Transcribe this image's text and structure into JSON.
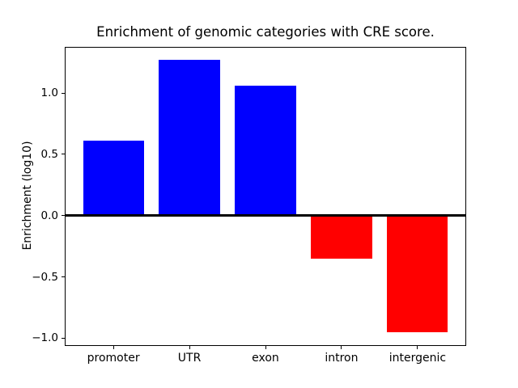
{
  "chart_data": {
    "type": "bar",
    "title": "Enrichment of genomic categories with CRE score.",
    "xlabel": "",
    "ylabel": "Enrichment (log10)",
    "categories": [
      "promoter",
      "UTR",
      "exon",
      "intron",
      "intergenic"
    ],
    "values": [
      0.61,
      1.27,
      1.06,
      -0.35,
      -0.95
    ],
    "bar_colors": [
      "#0000ff",
      "#0000ff",
      "#0000ff",
      "#ff0000",
      "#ff0000"
    ],
    "positive_color": "#0000ff",
    "negative_color": "#ff0000",
    "ylim": [
      -1.061,
      1.381
    ],
    "yticks": [
      -1.0,
      -0.5,
      0.0,
      0.5,
      1.0
    ],
    "ytick_labels": [
      "−1.0",
      "−0.5",
      "0.0",
      "0.5",
      "1.0"
    ],
    "zero_line": true,
    "grid": false,
    "legend": null,
    "background_color": "#ffffff",
    "text_color": "#000000"
  }
}
